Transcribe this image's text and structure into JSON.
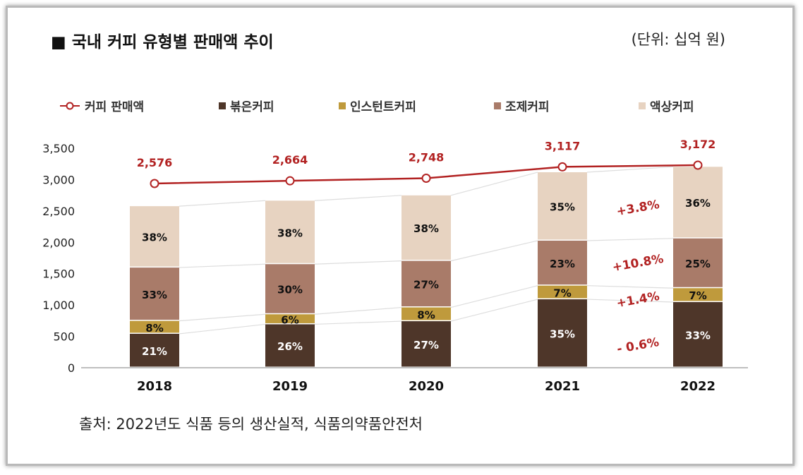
{
  "title": "■ 국내 커피 유형별 판매액 추이",
  "unit": "(단위: 십억 원)",
  "source": "출처: 2022년도 식품 등의 생산실적, 식품의약품안전처",
  "chart_data": {
    "type": "bar",
    "stacked": true,
    "title": "국내 커피 유형별 판매액 추이",
    "categories": [
      "2018",
      "2019",
      "2020",
      "2021",
      "2022"
    ],
    "yticks": [
      "0",
      "500",
      "1,000",
      "1,500",
      "2,000",
      "2,500",
      "3,000",
      "3,500"
    ],
    "ylim": [
      0,
      3500
    ],
    "legend_position": "top",
    "line_series": {
      "name": "커피 판매액",
      "values": [
        2576,
        2664,
        2748,
        3117,
        3172
      ],
      "labels": [
        "2,576",
        "2,664",
        "2,748",
        "3,117",
        "3,172"
      ],
      "color": "#b22222"
    },
    "series": [
      {
        "name": "볶은커피",
        "color": "#4e3629",
        "text_color": "#ffffff",
        "values": [
          21,
          26,
          27,
          35,
          33
        ]
      },
      {
        "name": "인스턴트커피",
        "color": "#bf9a3c",
        "text_color": "#111111",
        "values": [
          8,
          6,
          8,
          7,
          7
        ]
      },
      {
        "name": "조제커피",
        "color": "#a97b69",
        "text_color": "#111111",
        "values": [
          33,
          30,
          27,
          23,
          25
        ]
      },
      {
        "name": "액상커피",
        "color": "#e7d3c1",
        "text_color": "#111111",
        "values": [
          38,
          38,
          38,
          35,
          36
        ]
      }
    ],
    "value_unit": "%",
    "annotations": [
      "- 0.6%",
      "+1.4%",
      "+10.8%",
      "+3.8%"
    ]
  }
}
